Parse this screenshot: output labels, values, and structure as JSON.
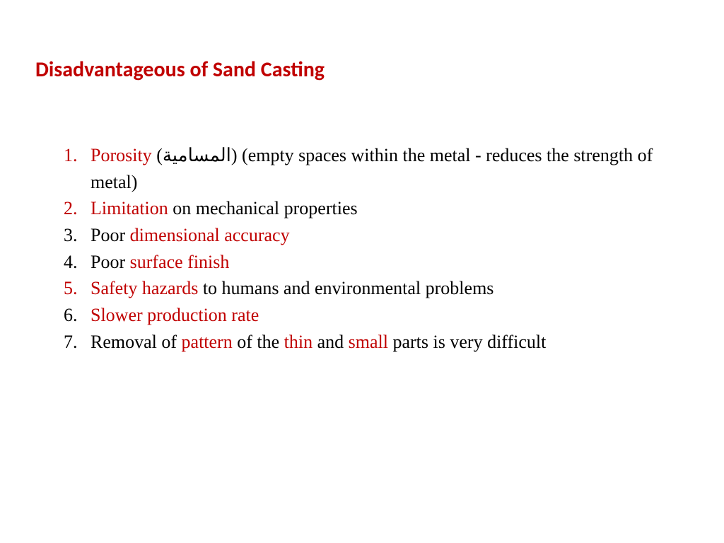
{
  "colors": {
    "highlight": "#c00000",
    "text": "#000000",
    "background": "#ffffff"
  },
  "typography": {
    "title_font": "Calibri",
    "body_font": "Times New Roman",
    "title_size_pt": 22,
    "body_size_pt": 20,
    "title_weight": "bold"
  },
  "title": "Disadvantageous of Sand Casting",
  "items": [
    {
      "number_color": "#c00000",
      "segments": [
        {
          "text": "Porosity ",
          "color": "#c00000"
        },
        {
          "text": "(المسامية) (empty spaces within the metal - reduces the strength of metal)",
          "color": "#000000"
        }
      ]
    },
    {
      "number_color": "#c00000",
      "segments": [
        {
          "text": "Limitation ",
          "color": "#c00000"
        },
        {
          "text": "on mechanical properties",
          "color": "#000000"
        }
      ]
    },
    {
      "number_color": "#000000",
      "segments": [
        {
          "text": "Poor ",
          "color": "#000000"
        },
        {
          "text": "dimensional accuracy",
          "color": "#c00000"
        }
      ]
    },
    {
      "number_color": "#000000",
      "segments": [
        {
          "text": "Poor ",
          "color": "#000000"
        },
        {
          "text": "surface finish",
          "color": "#c00000"
        }
      ]
    },
    {
      "number_color": "#c00000",
      "segments": [
        {
          "text": "Safety hazards ",
          "color": "#c00000"
        },
        {
          "text": "to humans and environmental problems",
          "color": "#000000"
        }
      ]
    },
    {
      "number_color": "#000000",
      "segments": [
        {
          "text": " Slower production rate",
          "color": "#c00000"
        }
      ]
    },
    {
      "number_color": "#000000",
      "segments": [
        {
          "text": "Removal of ",
          "color": "#000000"
        },
        {
          "text": "pattern ",
          "color": "#c00000"
        },
        {
          "text": "of the ",
          "color": "#000000"
        },
        {
          "text": "thin ",
          "color": "#c00000"
        },
        {
          "text": "and ",
          "color": "#000000"
        },
        {
          "text": "small ",
          "color": "#c00000"
        },
        {
          "text": "parts is very difficult",
          "color": "#000000"
        }
      ]
    }
  ]
}
